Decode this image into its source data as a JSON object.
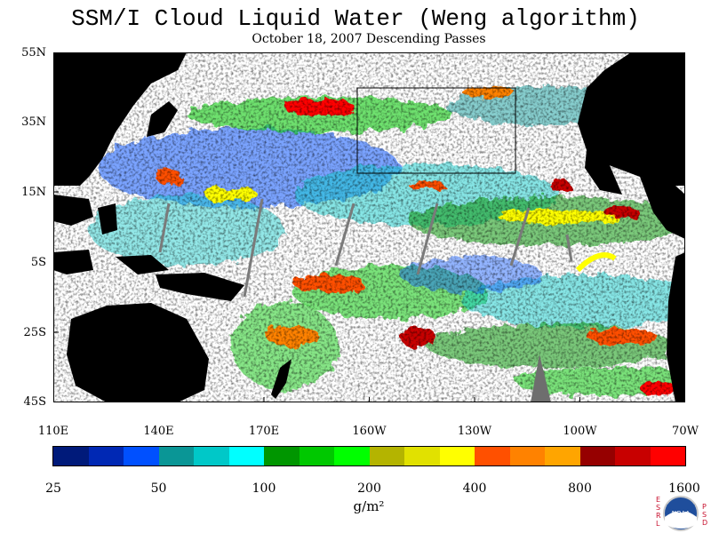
{
  "title": "SSM/I Cloud Liquid Water (Weng algorithm)",
  "subtitle": "October 18, 2007  Descending Passes",
  "lat_labels": [
    "55N",
    "35N",
    "15N",
    "5S",
    "25S",
    "45S"
  ],
  "lon_labels": [
    "110E",
    "140E",
    "170E",
    "160W",
    "130W",
    "100W",
    "70W"
  ],
  "colorbar": {
    "colors": [
      "#001a7a",
      "#0028b4",
      "#0050ff",
      "#0a9696",
      "#00c8c8",
      "#00ffff",
      "#009600",
      "#00c800",
      "#00ff00",
      "#b4b400",
      "#e1e100",
      "#ffff00",
      "#ff5000",
      "#ff8200",
      "#ffa500",
      "#960000",
      "#c80000",
      "#ff0000"
    ],
    "labels": [
      "25",
      "50",
      "100",
      "200",
      "400",
      "800",
      "1600"
    ]
  },
  "units": "g/m²",
  "logo": {
    "left_text": [
      "E",
      "S",
      "R",
      "L"
    ],
    "right_text": [
      "P",
      "S",
      "D"
    ],
    "emblem": "NOAA"
  }
}
